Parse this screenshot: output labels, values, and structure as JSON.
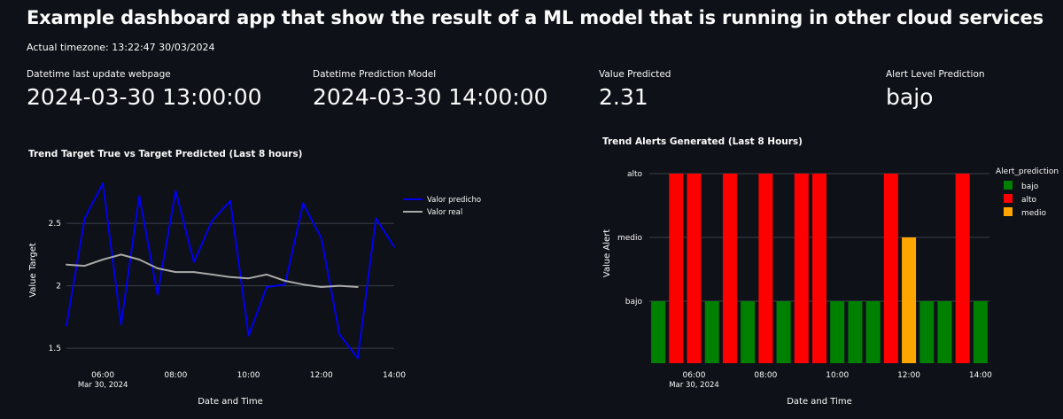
{
  "header": {
    "title": "Example dashboard app that show the result of a ML model that is running in other cloud services",
    "timezone_text": "Actual timezone: 13:22:47 30/03/2024"
  },
  "metrics": [
    {
      "label": "Datetime last update webpage",
      "value": "2024-03-30 13:00:00"
    },
    {
      "label": "Datetime Prediction Model",
      "value": "2024-03-30 14:00:00"
    },
    {
      "label": "Value Predicted",
      "value": "2.31"
    },
    {
      "label": "Alert Level Prediction",
      "value": "bajo"
    }
  ],
  "colors": {
    "background": "#0e1117",
    "pred_line": "#0000ee",
    "real_line": "#a9a9a9",
    "bajo": "#008000",
    "alto": "#ff0000",
    "medio": "#ffa500",
    "gridline": "#3a3f4b"
  },
  "chart_data": [
    {
      "type": "line",
      "title": "Trend Target True vs Target Predicted (Last 8 hours)",
      "xlabel": "Date and Time",
      "ylabel": "Value Target",
      "x_ticks": [
        "06:00",
        "08:00",
        "10:00",
        "12:00",
        "14:00"
      ],
      "x_date_label": "Mar 30, 2024",
      "y_ticks": [
        1.5,
        2,
        2.5
      ],
      "xlim": [
        "2024-03-30 05:00",
        "2024-03-30 14:00"
      ],
      "ylim": [
        1.38,
        2.87
      ],
      "legend_position": "top-right",
      "series": [
        {
          "name": "Valor predicho",
          "x": [
            "2024-03-30 05:00",
            "2024-03-30 05:30",
            "2024-03-30 06:00",
            "2024-03-30 06:30",
            "2024-03-30 07:00",
            "2024-03-30 07:30",
            "2024-03-30 08:00",
            "2024-03-30 08:30",
            "2024-03-30 09:00",
            "2024-03-30 09:30",
            "2024-03-30 10:00",
            "2024-03-30 10:30",
            "2024-03-30 11:00",
            "2024-03-30 11:30",
            "2024-03-30 12:00",
            "2024-03-30 12:30",
            "2024-03-30 13:00",
            "2024-03-30 13:30",
            "2024-03-30 14:00"
          ],
          "y": [
            1.68,
            2.54,
            2.82,
            1.69,
            2.72,
            1.93,
            2.76,
            2.19,
            2.52,
            2.68,
            1.6,
            1.99,
            2.01,
            2.66,
            2.38,
            1.61,
            1.42,
            2.54,
            2.31
          ]
        },
        {
          "name": "Valor real",
          "x": [
            "2024-03-30 05:00",
            "2024-03-30 05:30",
            "2024-03-30 06:00",
            "2024-03-30 06:30",
            "2024-03-30 07:00",
            "2024-03-30 07:30",
            "2024-03-30 08:00",
            "2024-03-30 08:30",
            "2024-03-30 09:00",
            "2024-03-30 09:30",
            "2024-03-30 10:00",
            "2024-03-30 10:30",
            "2024-03-30 11:00",
            "2024-03-30 11:30",
            "2024-03-30 12:00",
            "2024-03-30 12:30",
            "2024-03-30 13:00"
          ],
          "y": [
            2.17,
            2.16,
            2.21,
            2.25,
            2.21,
            2.14,
            2.11,
            2.11,
            2.09,
            2.07,
            2.06,
            2.09,
            2.04,
            2.01,
            1.99,
            2.0,
            1.99
          ]
        }
      ]
    },
    {
      "type": "bar",
      "title": "Trend Alerts Generated (Last 8 Hours)",
      "xlabel": "Date and Time",
      "ylabel": "Value Alert",
      "legend_title": "Alert_prediction",
      "legend_position": "top-right",
      "legend_items": [
        "bajo",
        "alto",
        "medio"
      ],
      "x_ticks": [
        "06:00",
        "08:00",
        "10:00",
        "12:00",
        "14:00"
      ],
      "x_date_label": "Mar 30, 2024",
      "y_categories": [
        "bajo",
        "medio",
        "alto"
      ],
      "xlim": [
        "2024-03-30 04:45",
        "2024-03-30 14:15"
      ],
      "x": [
        "2024-03-30 05:00",
        "2024-03-30 05:30",
        "2024-03-30 06:00",
        "2024-03-30 06:30",
        "2024-03-30 07:00",
        "2024-03-30 07:30",
        "2024-03-30 08:00",
        "2024-03-30 08:30",
        "2024-03-30 09:00",
        "2024-03-30 09:30",
        "2024-03-30 10:00",
        "2024-03-30 10:30",
        "2024-03-30 11:00",
        "2024-03-30 11:30",
        "2024-03-30 12:00",
        "2024-03-30 12:30",
        "2024-03-30 13:00",
        "2024-03-30 13:30",
        "2024-03-30 14:00"
      ],
      "values": [
        "bajo",
        "alto",
        "alto",
        "bajo",
        "alto",
        "bajo",
        "alto",
        "bajo",
        "alto",
        "alto",
        "bajo",
        "bajo",
        "bajo",
        "alto",
        "medio",
        "bajo",
        "bajo",
        "alto",
        "bajo"
      ]
    }
  ]
}
